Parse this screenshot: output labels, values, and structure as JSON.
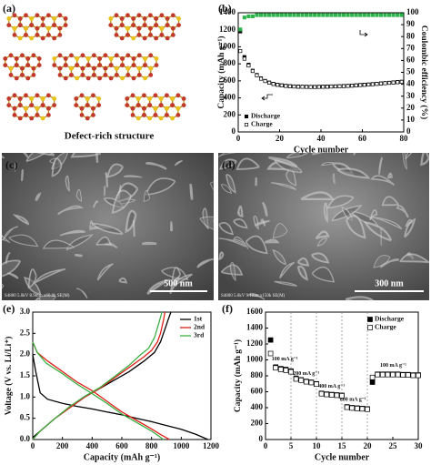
{
  "panels": {
    "a": {
      "label": "(a)",
      "caption": "Defect-rich structure"
    },
    "c": {
      "label": "(c)",
      "scale_bar": "500 nm",
      "info": "S4800 5.0kV 8.9mm x60.0k SE(M)"
    },
    "d": {
      "label": "(d)",
      "scale_bar": "300 nm",
      "info": "S4800 5.0kV 9.1mm x150k SE(M)"
    }
  },
  "chart_data": [
    {
      "type": "scatter",
      "panel_label": "(b)",
      "xlabel": "Cycle number",
      "ylabel": "Capacity (mAh g⁻¹)",
      "y2label": "Coulombic efficiency (%)",
      "x": [
        1,
        3,
        5,
        7,
        9,
        11,
        13,
        15,
        17,
        19,
        21,
        23,
        25,
        27,
        29,
        31,
        33,
        35,
        37,
        39,
        41,
        43,
        45,
        47,
        49,
        51,
        53,
        55,
        57,
        59,
        61,
        63,
        65,
        67,
        69,
        71,
        73,
        75,
        77,
        79
      ],
      "xlim": [
        0,
        80
      ],
      "xticks": [
        0,
        20,
        40,
        60,
        80
      ],
      "ylim": [
        0,
        1400
      ],
      "yticks": [
        0,
        200,
        400,
        600,
        800,
        1000,
        1200,
        1400
      ],
      "y2lim": [
        0,
        100
      ],
      "y2ticks": [
        0,
        10,
        20,
        30,
        40,
        50,
        60,
        70,
        80,
        90,
        100
      ],
      "legend": "lower left",
      "series": [
        {
          "name": "Discharge",
          "color": "#000000",
          "marker": "filled",
          "values": [
            1180,
            880,
            790,
            720,
            670,
            630,
            600,
            580,
            565,
            555,
            548,
            542,
            538,
            535,
            533,
            532,
            531,
            530,
            530,
            531,
            532,
            533,
            535,
            536,
            538,
            540,
            542,
            545,
            548,
            552,
            555,
            558,
            562,
            566,
            570,
            574,
            578,
            582,
            586,
            590
          ]
        },
        {
          "name": "Charge",
          "color": "#000000",
          "marker": "open",
          "values": [
            950,
            860,
            780,
            715,
            665,
            625,
            597,
            578,
            563,
            553,
            546,
            540,
            536,
            533,
            531,
            530,
            529,
            528,
            528,
            529,
            530,
            531,
            533,
            534,
            536,
            538,
            540,
            543,
            546,
            550,
            553,
            556,
            560,
            564,
            568,
            572,
            576,
            580,
            584,
            588
          ]
        },
        {
          "color": "#2db34a",
          "marker": "filled",
          "axis": "y2",
          "values": [
            86,
            96,
            97,
            97,
            98,
            98,
            98,
            98,
            98,
            98,
            98,
            98,
            98,
            98,
            98,
            98,
            98,
            98,
            98,
            98,
            98,
            98,
            98,
            98,
            98,
            98,
            98,
            98,
            98,
            98,
            98,
            98,
            98,
            98,
            98,
            98,
            98,
            98,
            98,
            98
          ]
        }
      ]
    },
    {
      "type": "line",
      "panel_label": "(e)",
      "xlabel": "Capacity (mAh g⁻¹)",
      "ylabel": "Voltage (V vs. Li/Li⁺)",
      "xlim": [
        0,
        1200
      ],
      "xticks": [
        0,
        200,
        400,
        600,
        800,
        1000,
        1200
      ],
      "ylim": [
        0,
        3
      ],
      "yticks": [
        {
          "value": 0,
          "label": "0.0"
        },
        0.5,
        {
          "value": 1,
          "label": "1.0"
        },
        1.5,
        {
          "value": 2,
          "label": "2.0"
        },
        2.5,
        {
          "value": 3,
          "label": "3.0"
        }
      ],
      "legend": "upper right",
      "series": [
        {
          "name": "1st",
          "color": "#000000",
          "x": [
            0,
            20,
            50,
            100,
            200,
            300,
            400,
            500,
            600,
            700,
            800,
            900,
            1000,
            1100,
            1180,
            null,
            0,
            50,
            100,
            150,
            250,
            350,
            450,
            550,
            650,
            750,
            820,
            860,
            890,
            910,
            930
          ],
          "values": [
            2.0,
            1.6,
            1.1,
            0.95,
            0.85,
            0.78,
            0.72,
            0.65,
            0.58,
            0.5,
            0.42,
            0.33,
            0.24,
            0.12,
            0.0,
            null,
            0.05,
            0.2,
            0.35,
            0.5,
            0.75,
            1.0,
            1.2,
            1.4,
            1.6,
            1.85,
            2.05,
            2.3,
            2.6,
            2.8,
            3.0
          ]
        },
        {
          "name": "2nd",
          "color": "#e0201b",
          "x": [
            0,
            30,
            100,
            200,
            300,
            400,
            500,
            600,
            700,
            800,
            860,
            900,
            920,
            null,
            0,
            50,
            150,
            250,
            350,
            450,
            550,
            650,
            750,
            800,
            840,
            860,
            880,
            890
          ],
          "values": [
            2.3,
            2.05,
            1.85,
            1.6,
            1.35,
            1.15,
            0.9,
            0.65,
            0.45,
            0.25,
            0.12,
            0.04,
            0.0,
            null,
            0.0,
            0.2,
            0.5,
            0.75,
            1.0,
            1.2,
            1.45,
            1.7,
            1.95,
            2.1,
            2.3,
            2.5,
            2.8,
            3.0
          ]
        },
        {
          "name": "3rd",
          "color": "#3cb043",
          "x": [
            0,
            30,
            90,
            200,
            300,
            400,
            500,
            600,
            700,
            800,
            850,
            880,
            null,
            0,
            50,
            150,
            250,
            350,
            450,
            550,
            650,
            720,
            780,
            820,
            850,
            870
          ],
          "values": [
            2.3,
            2.05,
            1.8,
            1.55,
            1.3,
            1.08,
            0.85,
            0.6,
            0.4,
            0.2,
            0.08,
            0.0,
            null,
            0.0,
            0.2,
            0.5,
            0.78,
            1.02,
            1.22,
            1.48,
            1.75,
            1.98,
            2.15,
            2.4,
            2.75,
            3.0
          ]
        }
      ]
    },
    {
      "type": "scatter",
      "panel_label": "(f)",
      "xlabel": "Cycle number",
      "ylabel": "Capacity (mAh g⁻¹)",
      "x": [
        1,
        2,
        3,
        4,
        5,
        6,
        7,
        8,
        9,
        10,
        11,
        12,
        13,
        14,
        15,
        16,
        17,
        18,
        19,
        20,
        21,
        22,
        23,
        24,
        25,
        26,
        27,
        28,
        29,
        30
      ],
      "xlim": [
        0,
        30
      ],
      "xticks": [
        0,
        5,
        10,
        15,
        20,
        25,
        30
      ],
      "ylim": [
        0,
        1600
      ],
      "yticks": [
        0,
        200,
        400,
        600,
        800,
        1000,
        1200,
        1400,
        1600
      ],
      "legend": "upper right",
      "vlines": [
        5,
        10,
        15,
        20
      ],
      "annotations": [
        "100 mA g⁻¹",
        "200 mA g⁻¹",
        "400 mA g⁻¹",
        "800 mA g⁻¹",
        "100 mA g⁻¹"
      ],
      "series": [
        {
          "name": "Discharge",
          "color": "#000000",
          "marker": "filled",
          "values": [
            1250,
            910,
            890,
            880,
            860,
            770,
            750,
            730,
            720,
            700,
            580,
            570,
            565,
            560,
            555,
            410,
            400,
            395,
            390,
            385,
            720,
            820,
            820,
            820,
            820,
            820,
            815,
            815,
            810,
            810
          ]
        },
        {
          "name": "Charge",
          "color": "#000000",
          "marker": "open",
          "values": [
            1080,
            900,
            880,
            870,
            850,
            760,
            745,
            725,
            715,
            695,
            575,
            565,
            560,
            555,
            550,
            405,
            395,
            390,
            385,
            380,
            780,
            815,
            815,
            815,
            815,
            815,
            810,
            810,
            805,
            805
          ]
        }
      ]
    }
  ]
}
